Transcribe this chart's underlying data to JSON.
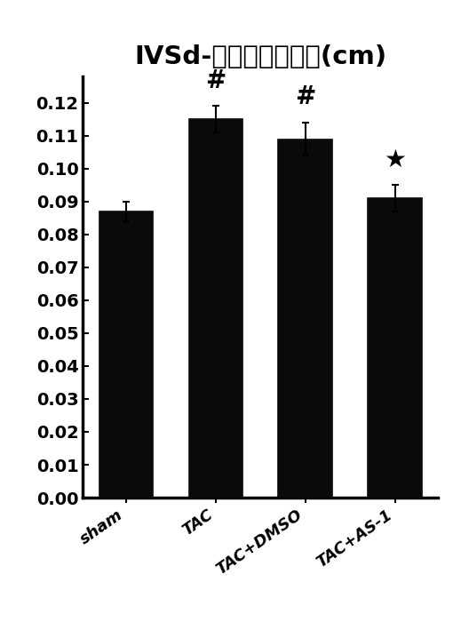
{
  "categories": [
    "sham",
    "TAC",
    "TAC+DMSO",
    "TAC+AS-1"
  ],
  "values": [
    0.087,
    0.115,
    0.109,
    0.091
  ],
  "errors": [
    0.003,
    0.004,
    0.005,
    0.004
  ],
  "bar_color": "#0a0a0a",
  "bar_width": 0.6,
  "title": "IVSd-室间隔舒张厚度(cm)",
  "title_fontsize": 21,
  "ylim": [
    0.0,
    0.128
  ],
  "yticks": [
    0.0,
    0.01,
    0.02,
    0.03,
    0.04,
    0.05,
    0.06,
    0.07,
    0.08,
    0.09,
    0.1,
    0.11,
    0.12
  ],
  "significance": [
    "",
    "#",
    "#",
    "★"
  ],
  "sig_fontsize": 20,
  "tick_fontsize": 14,
  "xlabel_fontsize": 13,
  "background_color": "#ffffff",
  "errorbar_capsize": 3,
  "errorbar_linewidth": 1.5
}
